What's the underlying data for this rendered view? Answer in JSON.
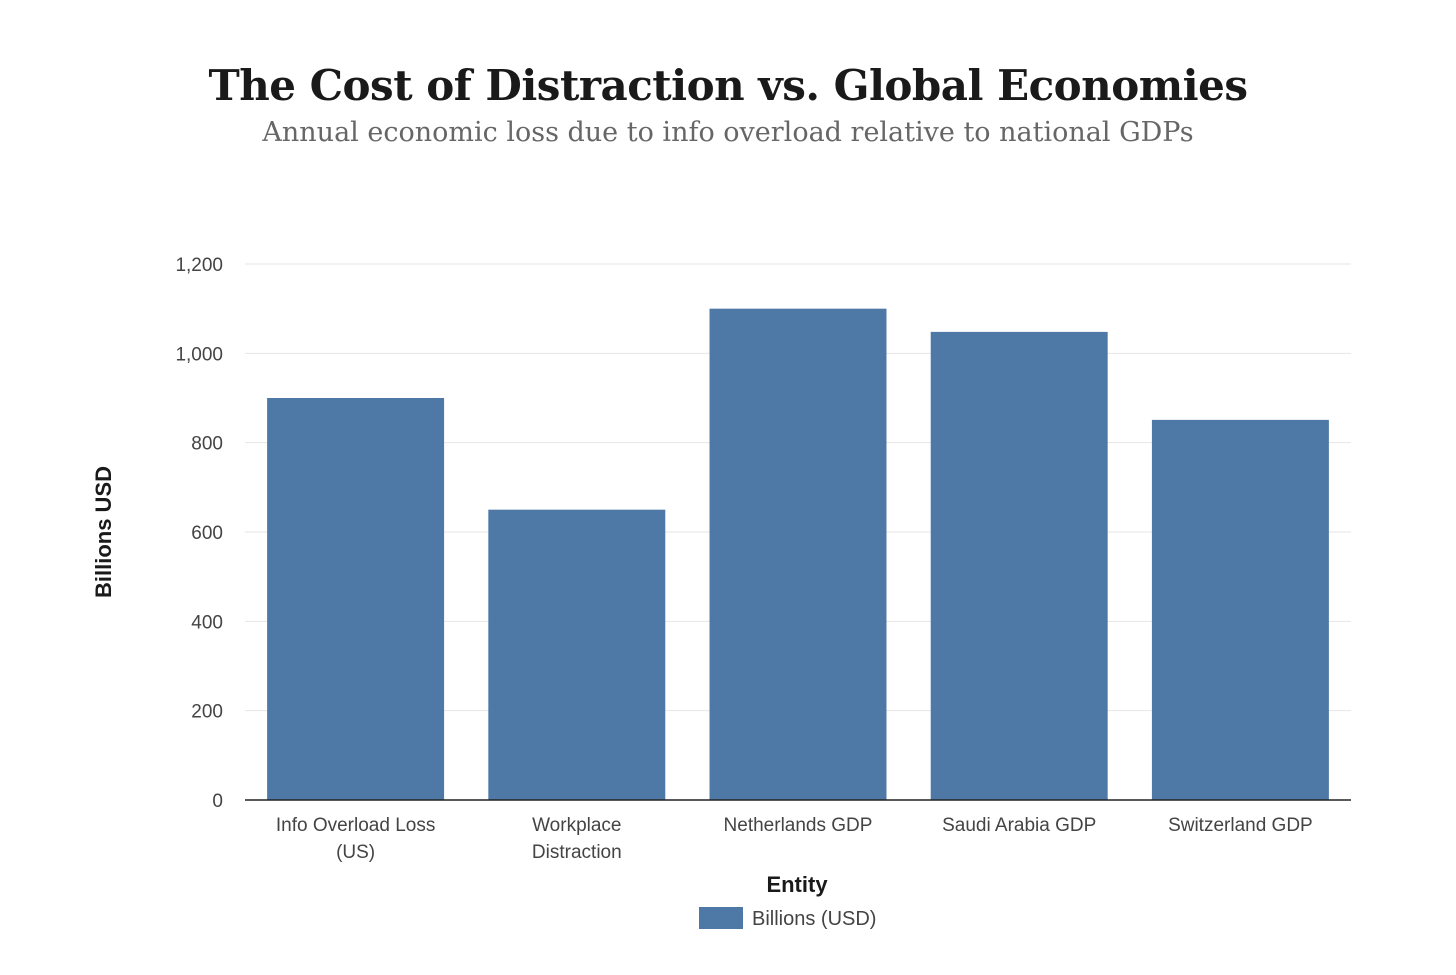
{
  "chart_data": {
    "type": "bar",
    "title": "The Cost of Distraction vs. Global Economies",
    "subtitle": "Annual economic loss due to info overload relative to national GDPs",
    "xlabel": "Entity",
    "ylabel": "Billions USD",
    "categories": [
      [
        "Info Overload Loss",
        "(US)"
      ],
      [
        "Workplace",
        "Distraction"
      ],
      [
        "Netherlands GDP"
      ],
      [
        "Saudi Arabia GDP"
      ],
      [
        "Switzerland GDP"
      ]
    ],
    "series": [
      {
        "name": "Billions (USD)",
        "values": [
          900,
          650,
          1100,
          1048,
          851
        ],
        "color": "#4e79a7"
      }
    ],
    "ylim": [
      0,
      1200
    ],
    "yticks": [
      0,
      200,
      400,
      600,
      800,
      1000,
      1200
    ],
    "ytick_labels": [
      "0",
      "200",
      "400",
      "600",
      "800",
      "1,000",
      "1,200"
    ],
    "grid": true,
    "legend_position": "bottom-center"
  }
}
